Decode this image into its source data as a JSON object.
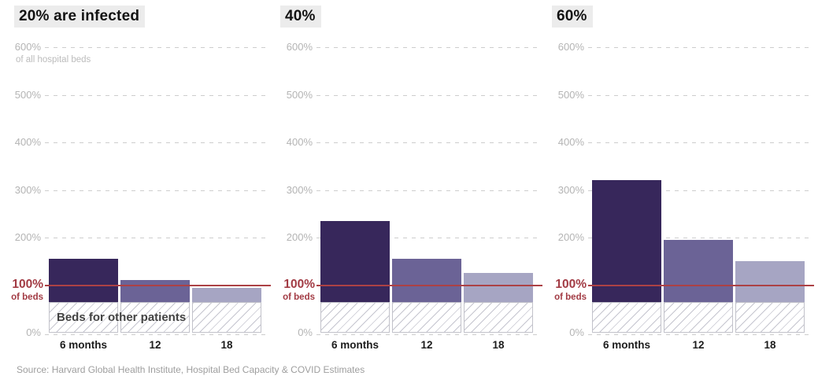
{
  "page": {
    "background": "#ffffff",
    "source_note": "Source: Harvard Global Health Institute, Hospital Bed Capacity & COVID Estimates"
  },
  "colors": {
    "bar_6_months": "#37275b",
    "bar_12": "#6b6396",
    "bar_18": "#a6a5c3",
    "capacity_line": "#ac4145",
    "capacity_label_text": "#a23b44",
    "gridline": "#cdcdcd",
    "tick_text": "#b4b4b4",
    "title_text": "#121212",
    "title_highlight": "#ececec",
    "hatch_stripe": "#c5c5cf",
    "hatch_border": "#c2c2ca",
    "occupied_label_text": "#424242",
    "xlabel_text": "#1c1c1c",
    "source_text": "#9e9e9e"
  },
  "chart_data": [
    {
      "type": "bar",
      "title": "20% are infected",
      "y_axis_note": "of all hospital beds",
      "categories": [
        "6 months",
        "12",
        "18"
      ],
      "values": [
        155,
        110,
        95
      ],
      "occupied": {
        "value": 65,
        "label": "Beds for other patients"
      },
      "capacity_line": {
        "value": 100,
        "label": "100%",
        "sublabel": "of beds"
      },
      "ylim": [
        0,
        600
      ],
      "ytick_step": 100,
      "yticks": [
        "600%",
        "500%",
        "400%",
        "300%",
        "200%",
        "100%",
        "0%"
      ],
      "grid": "dashed-horizontal",
      "legend": "none"
    },
    {
      "type": "bar",
      "title": "40%",
      "categories": [
        "6 months",
        "12",
        "18"
      ],
      "values": [
        235,
        155,
        125
      ],
      "occupied": {
        "value": 65
      },
      "capacity_line": {
        "value": 100,
        "label": "100%",
        "sublabel": "of beds"
      },
      "ylim": [
        0,
        600
      ],
      "ytick_step": 100,
      "yticks": [
        "600%",
        "500%",
        "400%",
        "300%",
        "200%",
        "100%",
        "0%"
      ],
      "grid": "dashed-horizontal",
      "legend": "none"
    },
    {
      "type": "bar",
      "title": "60%",
      "categories": [
        "6 months",
        "12",
        "18"
      ],
      "values": [
        320,
        195,
        150
      ],
      "occupied": {
        "value": 65
      },
      "capacity_line": {
        "value": 100,
        "label": "100%",
        "sublabel": "of beds"
      },
      "ylim": [
        0,
        600
      ],
      "ytick_step": 100,
      "yticks": [
        "600%",
        "500%",
        "400%",
        "300%",
        "200%",
        "100%",
        "0%"
      ],
      "grid": "dashed-horizontal",
      "legend": "none"
    }
  ]
}
